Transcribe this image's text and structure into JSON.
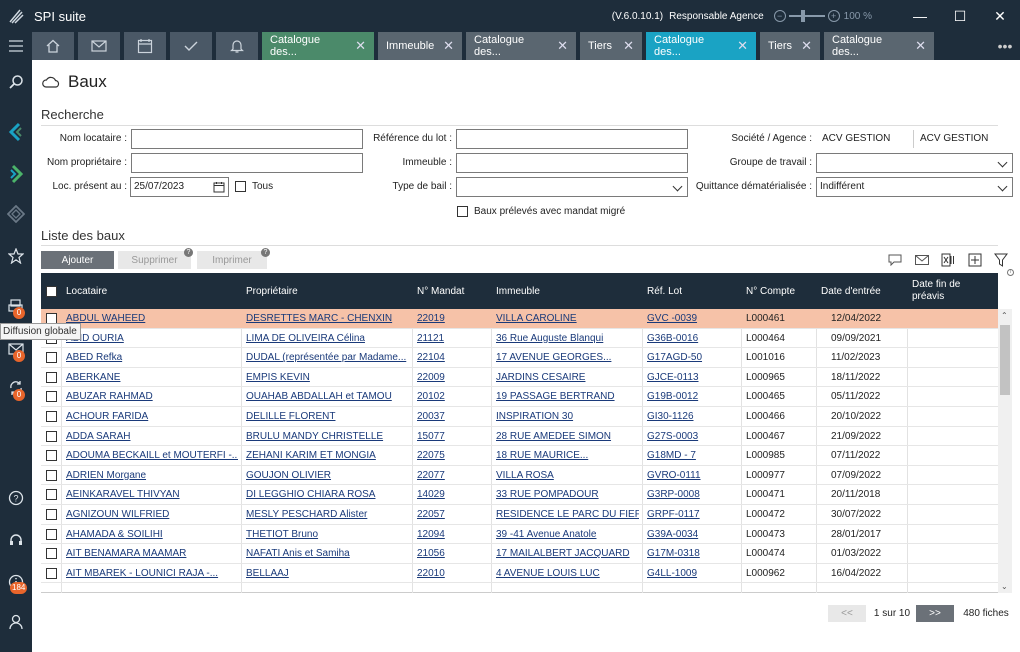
{
  "app": {
    "title": "SPI suite",
    "version": "(V.6.0.10.1)",
    "role": "Responsable Agence",
    "zoom_minus": "−",
    "zoom_plus": "+",
    "zoom": "100 %"
  },
  "window": {
    "minimize": "—",
    "maximize": "☐",
    "close": "✕"
  },
  "sidebar": {
    "tooltip": "Diffusion globale",
    "badges": {
      "diffusion": "0",
      "mail": "0",
      "sync": "0",
      "info": "184"
    }
  },
  "tabs": [
    {
      "label": "Catalogue des...",
      "style": "green"
    },
    {
      "label": "Immeuble",
      "style": "grey"
    },
    {
      "label": "Catalogue des...",
      "style": "grey"
    },
    {
      "label": "Tiers",
      "style": "grey"
    },
    {
      "label": "Catalogue des...",
      "style": "active"
    },
    {
      "label": "Tiers",
      "style": "grey"
    },
    {
      "label": "Catalogue des...",
      "style": "grey"
    }
  ],
  "tab_close": "✕",
  "tabs_more": "•••",
  "page": {
    "title": "Baux"
  },
  "search": {
    "section_title": "Recherche",
    "nom_locataire_label": "Nom locataire :",
    "nom_proprietaire_label": "Nom propriétaire :",
    "loc_present_label": "Loc. présent au :",
    "loc_present_value": "25/07/2023",
    "tous_label": "Tous",
    "ref_lot_label": "Référence du lot :",
    "immeuble_label": "Immeuble :",
    "type_bail_label": "Type de bail :",
    "baux_preleves_label": "Baux prélevés avec mandat migré",
    "societe_label": "Société / Agence :",
    "societe_value": "ACV GESTION",
    "agence_value": "ACV GESTION",
    "groupe_label": "Groupe de travail :",
    "quittance_label": "Quittance dématérialisée :",
    "quittance_value": "Indifférent"
  },
  "list": {
    "section_title": "Liste des baux",
    "add_button": "Ajouter",
    "delete_button": "Supprimer",
    "print_button": "Imprimer",
    "help_mark": "?",
    "columns": {
      "locataire": "Locataire",
      "proprietaire": "Propriétaire",
      "mandat": "N° Mandat",
      "immeuble": "Immeuble",
      "ref_lot": "Réf. Lot",
      "compte": "N° Compte",
      "date_entree": "Date d'entrée",
      "date_fin": "Date fin de préavis"
    },
    "rows": [
      {
        "locataire": "ABDUL WAHEED",
        "proprietaire": "DESRETTES MARC - CHENXIN",
        "mandat": "22019",
        "immeuble": "VILLA CAROLINE",
        "lot": "GVC -0039",
        "compte": "L000461",
        "date": "12/04/2022",
        "highlight": true
      },
      {
        "locataire": "ABID OURIA",
        "proprietaire": "LIMA DE OLIVEIRA Célina",
        "mandat": "21121",
        "immeuble": "36 Rue Auguste Blanqui",
        "lot": "G36B-0016",
        "compte": "L000464",
        "date": "09/09/2021"
      },
      {
        "locataire": "ABED Refka",
        "proprietaire": "DUDAL (représentée par Madame...",
        "mandat": "22104",
        "immeuble": "17 AVENUE GEORGES...",
        "lot": "G17AGD-50",
        "compte": "L001016",
        "date": "11/02/2023"
      },
      {
        "locataire": "ABERKANE",
        "proprietaire": "EMPIS KEVIN",
        "mandat": "22009",
        "immeuble": "JARDINS CESAIRE",
        "lot": "GJCE-0113",
        "compte": "L000965",
        "date": "18/11/2022"
      },
      {
        "locataire": "ABUZAR RAHMAD",
        "proprietaire": "OUAHAB ABDALLAH et TAMOU",
        "mandat": "20102",
        "immeuble": "19 PASSAGE BERTRAND",
        "lot": "G19B-0012",
        "compte": "L000465",
        "date": "05/11/2022"
      },
      {
        "locataire": "ACHOUR FARIDA",
        "proprietaire": "DELILLE FLORENT",
        "mandat": "20037",
        "immeuble": "INSPIRATION 30",
        "lot": "GI30-1126",
        "compte": "L000466",
        "date": "20/10/2022"
      },
      {
        "locataire": "ADDA SARAH",
        "proprietaire": "BRULU MANDY CHRISTELLE",
        "mandat": "15077",
        "immeuble": "28 RUE AMEDEE SIMON",
        "lot": "G27S-0003",
        "compte": "L000467",
        "date": "21/09/2022"
      },
      {
        "locataire": "ADOUMA BECKAILL et MOUTERFI -...",
        "proprietaire": "ZEHANI KARIM ET MONGIA",
        "mandat": "22075",
        "immeuble": "18 RUE MAURICE...",
        "lot": "G18MD - 7",
        "compte": "L000985",
        "date": "07/11/2022"
      },
      {
        "locataire": "ADRIEN Morgane",
        "proprietaire": "GOUJON OLIVIER",
        "mandat": "22077",
        "immeuble": "VILLA ROSA",
        "lot": "GVRO-0111",
        "compte": "L000977",
        "date": "07/09/2022"
      },
      {
        "locataire": "AEINKARAVEL THIVYAN",
        "proprietaire": "DI LEGGHIO CHIARA ROSA",
        "mandat": "14029",
        "immeuble": "33 RUE POMPADOUR",
        "lot": "G3RP-0008",
        "compte": "L000471",
        "date": "20/11/2018"
      },
      {
        "locataire": "AGNIZOUN WILFRIED",
        "proprietaire": "MESLY PESCHARD Alister",
        "mandat": "22057",
        "immeuble": "RESIDENCE LE PARC DU FIEF",
        "lot": "GRPF-0117",
        "compte": "L000472",
        "date": "30/07/2022"
      },
      {
        "locataire": "AHAMADA & SOILIHI",
        "proprietaire": "THETIOT Bruno",
        "mandat": "12094",
        "immeuble": "39 -41 Avenue Anatole",
        "lot": "G39A-0034",
        "compte": "L000473",
        "date": "28/01/2017"
      },
      {
        "locataire": "AIT BENAMARA MAAMAR",
        "proprietaire": "NAFATI Anis et Samiha",
        "mandat": "21056",
        "immeuble": "17 MAILALBERT JACQUARD",
        "lot": "G17M-0318",
        "compte": "L000474",
        "date": "01/03/2022"
      },
      {
        "locataire": "AIT MBAREK - LOUNICI RAJA -...",
        "proprietaire": "BELLAAJ",
        "mandat": "22010",
        "immeuble": "4 AVENUE LOUIS LUC",
        "lot": "G4LL-1009",
        "compte": "L000962",
        "date": "16/04/2022"
      }
    ]
  },
  "pager": {
    "prev": "<<",
    "page_info": "1 sur 10",
    "next": ">>",
    "count": "480 fiches"
  },
  "colors": {
    "navy": "#1e2d3b",
    "active_tab": "#1aa3c4",
    "green_tab": "#4b8a6a",
    "highlight_row": "#f6c2a8",
    "badge": "#e8652b"
  }
}
